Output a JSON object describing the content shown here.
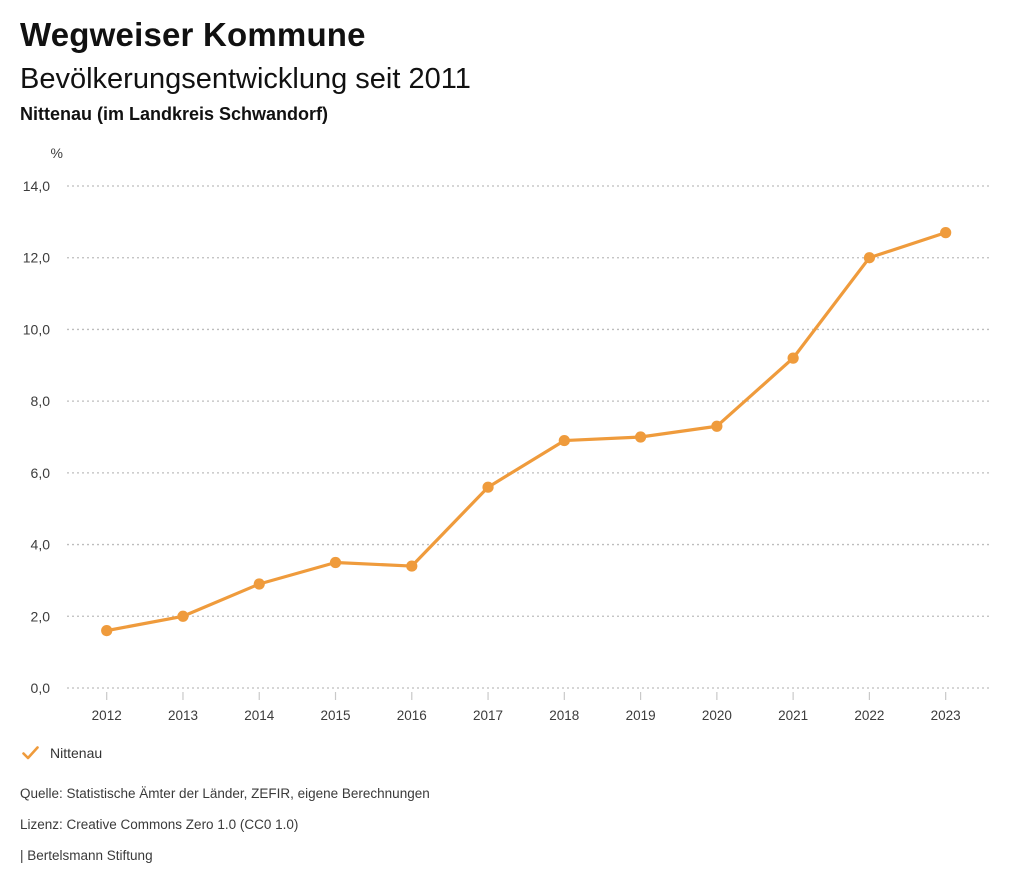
{
  "header": {
    "title": "Wegweiser Kommune",
    "subtitle": "Bevölkerungsentwicklung seit 2011",
    "region": "Nittenau (im Landkreis Schwandorf)"
  },
  "chart_data": {
    "type": "line",
    "title": "Bevölkerungsentwicklung seit 2011",
    "xlabel": "",
    "ylabel": "%",
    "x": [
      2012,
      2013,
      2014,
      2015,
      2016,
      2017,
      2018,
      2019,
      2020,
      2021,
      2022,
      2023
    ],
    "series": [
      {
        "name": "Nittenau",
        "values": [
          1.6,
          2.0,
          2.9,
          3.5,
          3.4,
          5.6,
          6.9,
          7.0,
          7.3,
          9.2,
          12.0,
          12.7
        ]
      }
    ],
    "ylim": [
      0,
      14
    ],
    "ytick_step": 2,
    "ytick_labels": [
      "0,0",
      "2,0",
      "4,0",
      "6,0",
      "8,0",
      "10,0",
      "12,0",
      "14,0"
    ],
    "unit_label": "%",
    "grid": "horizontal-dotted",
    "legend_position": "bottom-left",
    "marker": "circle"
  },
  "legend": {
    "items": [
      {
        "icon": "check-icon",
        "label": "Nittenau"
      }
    ]
  },
  "footer": {
    "source": "Quelle: Statistische Ämter der Länder, ZEFIR, eigene Berechnungen",
    "license": "Lizenz: Creative Commons Zero 1.0 (CC0 1.0)",
    "attribution": "| Bertelsmann Stiftung"
  },
  "colors": {
    "accent": "#EF9B3C",
    "grid": "#bdbdbd",
    "tick": "#c9c9c9",
    "axis_text": "#3c3c3c",
    "background": "#ffffff"
  }
}
